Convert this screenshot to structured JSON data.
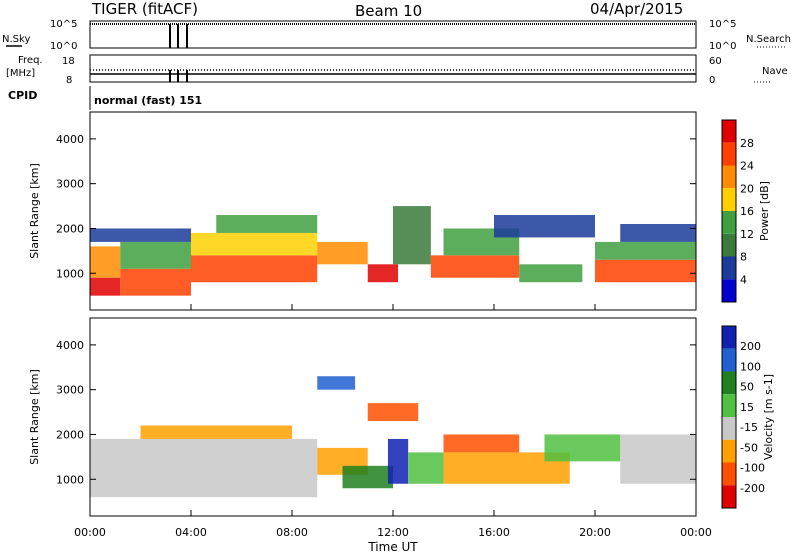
{
  "header": {
    "radar": "TIGER (fitACF)",
    "beam": "Beam 10",
    "date": "04/Apr/2015"
  },
  "top_panels": {
    "nsky_label": "N.Sky",
    "nsky_ticks": [
      "10^5",
      "10^0"
    ],
    "nsearch_label": "N.Search",
    "nsearch_ticks": [
      "10^5",
      "10^0"
    ],
    "freq_label": "Freq.",
    "freq_unit": "[MHz]",
    "freq_ticks": [
      "18",
      "8"
    ],
    "nave_label": "Nave",
    "nave_ticks": [
      "60",
      "0"
    ],
    "cpid_label": "CPID",
    "cpid_text": "normal (fast) 151"
  },
  "chart_data": [
    {
      "type": "heatmap",
      "parameter": "Power",
      "ylabel": "Slant Range [km]",
      "ylim": [
        180,
        4600
      ],
      "yticks": [
        "1000",
        "2000",
        "3000",
        "4000"
      ],
      "colorbar": {
        "label": "Power [dB]",
        "tick_labels": [
          "28",
          "24",
          "20",
          "16",
          "12",
          "8",
          "4"
        ],
        "colors": [
          "#e00000",
          "#ff4000",
          "#ff8c00",
          "#ffd000",
          "#40a040",
          "#3a7a3a",
          "#1b3a9a",
          "#0000d0"
        ]
      },
      "bands": [
        {
          "x": [
            0,
            1.2
          ],
          "y": [
            900,
            1600
          ],
          "c": "#ff8c00"
        },
        {
          "x": [
            0,
            1.2
          ],
          "y": [
            500,
            900
          ],
          "c": "#e00000"
        },
        {
          "x": [
            1.2,
            4
          ],
          "y": [
            500,
            1100
          ],
          "c": "#ff4000"
        },
        {
          "x": [
            1.2,
            4
          ],
          "y": [
            1100,
            1700
          ],
          "c": "#40a040"
        },
        {
          "x": [
            0,
            4
          ],
          "y": [
            1700,
            2000
          ],
          "c": "#1b3a9a"
        },
        {
          "x": [
            4,
            9
          ],
          "y": [
            800,
            1400
          ],
          "c": "#ff4000"
        },
        {
          "x": [
            4,
            9
          ],
          "y": [
            1400,
            1900
          ],
          "c": "#ffd000"
        },
        {
          "x": [
            5,
            9
          ],
          "y": [
            1900,
            2300
          ],
          "c": "#40a040"
        },
        {
          "x": [
            9,
            11
          ],
          "y": [
            1200,
            1700
          ],
          "c": "#ff8c00"
        },
        {
          "x": [
            11,
            12.2
          ],
          "y": [
            800,
            1200
          ],
          "c": "#e00000"
        },
        {
          "x": [
            12,
            13.5
          ],
          "y": [
            1200,
            2500
          ],
          "c": "#3a7a3a"
        },
        {
          "x": [
            13.5,
            17
          ],
          "y": [
            900,
            1400
          ],
          "c": "#ff4000"
        },
        {
          "x": [
            14,
            17
          ],
          "y": [
            1400,
            2000
          ],
          "c": "#40a040"
        },
        {
          "x": [
            16,
            20
          ],
          "y": [
            1800,
            2300
          ],
          "c": "#1b3a9a"
        },
        {
          "x": [
            17,
            19.5
          ],
          "y": [
            800,
            1200
          ],
          "c": "#40a040"
        },
        {
          "x": [
            20,
            24
          ],
          "y": [
            800,
            1300
          ],
          "c": "#ff4000"
        },
        {
          "x": [
            20,
            24
          ],
          "y": [
            1300,
            1700
          ],
          "c": "#40a040"
        },
        {
          "x": [
            21,
            24
          ],
          "y": [
            1700,
            2100
          ],
          "c": "#1b3a9a"
        }
      ]
    },
    {
      "type": "heatmap",
      "parameter": "Velocity",
      "ylabel": "Slant Range [km]",
      "ylim": [
        180,
        4600
      ],
      "yticks": [
        "1000",
        "2000",
        "3000",
        "4000"
      ],
      "colorbar": {
        "label": "Velocity [m s-1]",
        "tick_labels": [
          "200",
          "100",
          "50",
          "15",
          "-15",
          "-50",
          "-100",
          "-200"
        ],
        "colors": [
          "#1020b0",
          "#2060d0",
          "#208020",
          "#50c040",
          "#c8c8c8",
          "#ffa000",
          "#ff5000",
          "#e00000"
        ]
      },
      "bands": [
        {
          "x": [
            0,
            9
          ],
          "y": [
            600,
            1900
          ],
          "c": "#c8c8c8"
        },
        {
          "x": [
            2,
            8
          ],
          "y": [
            1900,
            2200
          ],
          "c": "#ffa000"
        },
        {
          "x": [
            9,
            11
          ],
          "y": [
            1100,
            1700
          ],
          "c": "#ffa000"
        },
        {
          "x": [
            10,
            12
          ],
          "y": [
            800,
            1300
          ],
          "c": "#208020"
        },
        {
          "x": [
            11.8,
            12.6
          ],
          "y": [
            900,
            1900
          ],
          "c": "#1020b0"
        },
        {
          "x": [
            12.6,
            14
          ],
          "y": [
            900,
            1600
          ],
          "c": "#50c040"
        },
        {
          "x": [
            14,
            19
          ],
          "y": [
            900,
            1600
          ],
          "c": "#ffa000"
        },
        {
          "x": [
            14,
            17
          ],
          "y": [
            1600,
            2000
          ],
          "c": "#ff5000"
        },
        {
          "x": [
            18,
            21
          ],
          "y": [
            1400,
            2000
          ],
          "c": "#50c040"
        },
        {
          "x": [
            21,
            24
          ],
          "y": [
            900,
            2000
          ],
          "c": "#c8c8c8"
        },
        {
          "x": [
            11,
            13
          ],
          "y": [
            2300,
            2700
          ],
          "c": "#ff5000"
        },
        {
          "x": [
            9,
            10.5
          ],
          "y": [
            3000,
            3300
          ],
          "c": "#2060d0"
        }
      ]
    }
  ],
  "xaxis": {
    "label": "Time UT",
    "ticks": [
      "00:00",
      "04:00",
      "08:00",
      "12:00",
      "16:00",
      "20:00",
      "00:00"
    ]
  }
}
